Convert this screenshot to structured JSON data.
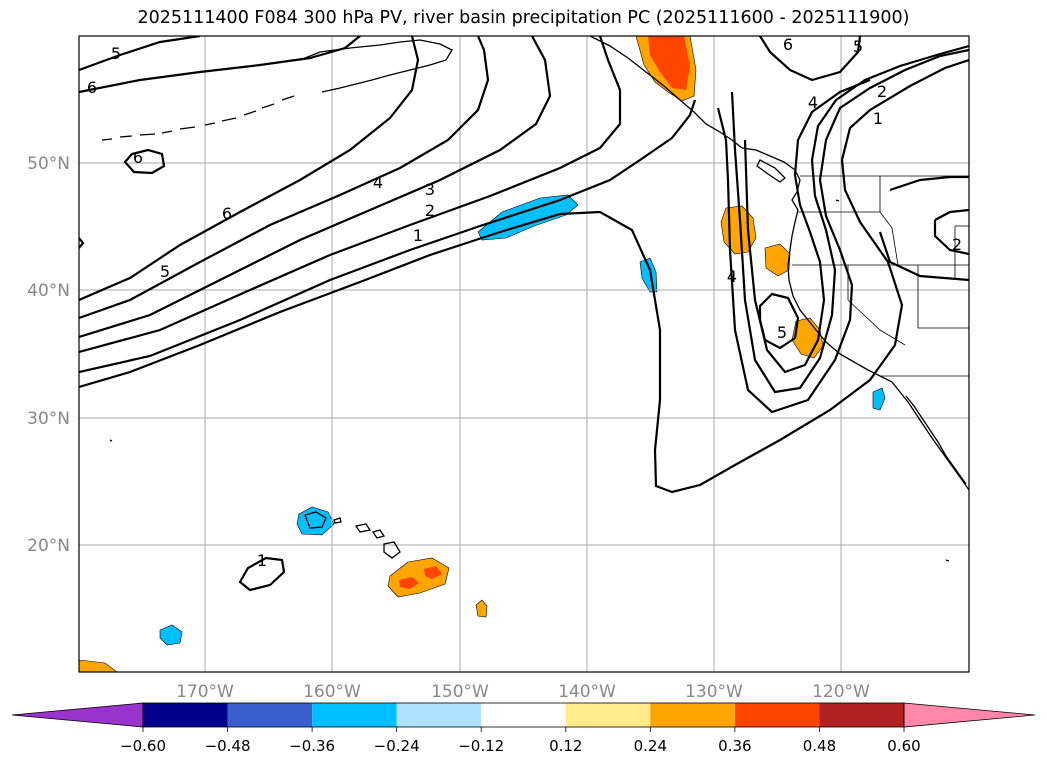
{
  "title": "2025111400 F084 300 hPa PV, river basin precipitation PC (2025111600 - 2025111900)",
  "axes": {
    "lat_labels": [
      "50°N",
      "40°N",
      "30°N",
      "20°N"
    ],
    "lon_labels": [
      "170°W",
      "160°W",
      "150°W",
      "140°W",
      "130°W",
      "120°W"
    ]
  },
  "contour_labels": {
    "pv_1_east": "1",
    "pv_1_hawaii": "1",
    "pv_1_na": "1",
    "pv_2_mid": "2",
    "pv_2_na": "2",
    "pv_2_east": "2",
    "pv_3_mid": "3",
    "pv_4_mid": "4",
    "pv_4_trough": "4",
    "pv_4_north": "4",
    "pv_5_west": "5",
    "pv_5_top": "5",
    "pv_5_trough": "5",
    "pv_5_ne": "5",
    "pv_6_left": "6",
    "pv_6_mid": "6",
    "pv_6_small": "6",
    "pv_6_top": "6"
  },
  "colorbar": {
    "ticks": [
      "−0.60",
      "−0.48",
      "−0.36",
      "−0.24",
      "−0.12",
      "0.12",
      "0.24",
      "0.36",
      "0.48",
      "0.60"
    ],
    "colors": [
      "#9933cc",
      "#00008b",
      "#3a5fcd",
      "#00bfff",
      "#b0e2ff",
      "#ffffff",
      "#ffec8b",
      "#ffa500",
      "#ff4500",
      "#b22222",
      "#ff88aa"
    ]
  }
}
